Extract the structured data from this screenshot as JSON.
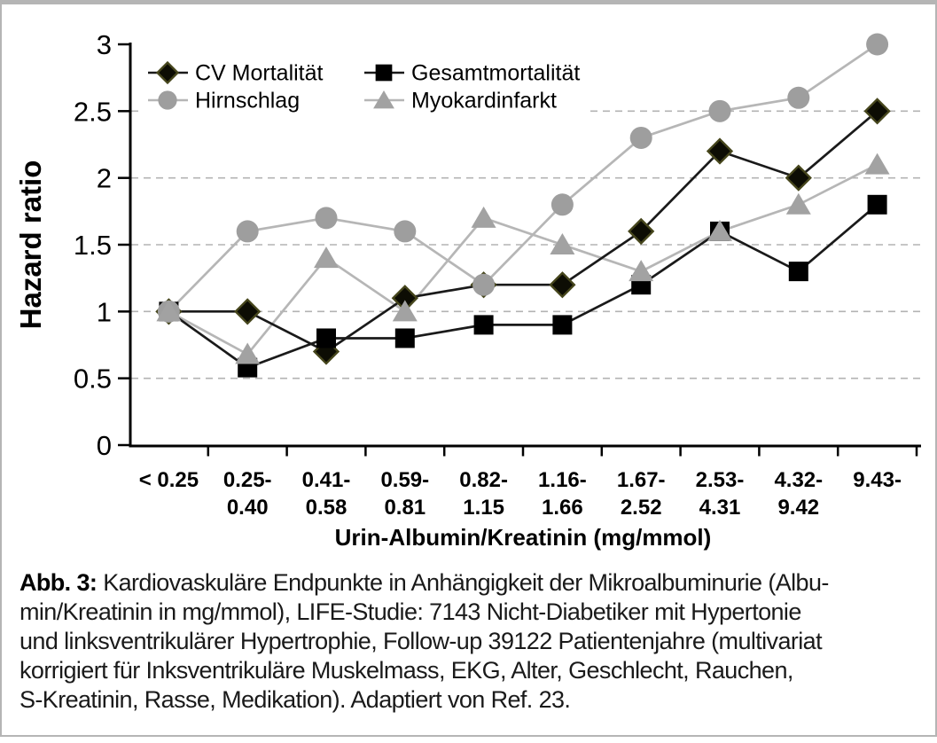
{
  "figure": {
    "caption": {
      "label": "Abb. 3:",
      "line1_rest": "Kardiovaskuläre Endpunkte in Anhängigkeit der Mikroalbuminurie (Albu-",
      "lines": [
        "min/Kreatinin in mg/mmol), LIFE-Studie: 7143 Nicht-Diabetiker mit Hypertonie",
        "und linksventrikulärer Hypertrophie, Follow-up 39122 Patientenjahre (multivariat",
        "korrigiert für Inksventrikuläre Muskelmass, EKG, Alter, Geschlecht, Rauchen,",
        "S-Kreatinin, Rasse, Medikation). Adaptiert von Ref. 23."
      ]
    }
  },
  "chart_data": {
    "type": "line",
    "title": "",
    "ylabel": "Hazard ratio",
    "xlabel": "Urin-Albumin/Kreatinin (mg/mmol)",
    "ylim": [
      0,
      3
    ],
    "yticks": [
      0,
      0.5,
      1,
      1.5,
      2,
      2.5,
      3
    ],
    "ytick_labels": [
      "0",
      "0.5",
      "1",
      "1.5",
      "2",
      "2.5",
      "3"
    ],
    "grid": {
      "horizontal_dashed_at": [
        0.5,
        1,
        1.5,
        2,
        2.5
      ],
      "color": "#b3b3b3"
    },
    "legend_position": "top-left-inside",
    "categories": [
      [
        "< 0.25"
      ],
      [
        "0.25-",
        "0.40"
      ],
      [
        "0.41-",
        "0.58"
      ],
      [
        "0.59-",
        "0.81"
      ],
      [
        "0.82-",
        "1.15"
      ],
      [
        "1.16-",
        "1.66"
      ],
      [
        "1.67-",
        "2.52"
      ],
      [
        "2.53-",
        "4.31"
      ],
      [
        "4.32-",
        "9.42"
      ],
      [
        "9.43-"
      ]
    ],
    "series": [
      {
        "name": "CV Mortalität",
        "marker": "diamond",
        "marker_color": "#0d0d04",
        "marker_edge": "#46461c",
        "line_color": "#1a1a1a",
        "values": [
          1.0,
          1.0,
          0.7,
          1.1,
          1.2,
          1.2,
          1.6,
          2.2,
          2.0,
          2.5
        ]
      },
      {
        "name": "Gesamtmortalität",
        "marker": "square",
        "marker_color": "#000000",
        "marker_edge": "#000000",
        "line_color": "#1a1a1a",
        "values": [
          1.0,
          0.58,
          0.8,
          0.8,
          0.9,
          0.9,
          1.2,
          1.6,
          1.3,
          1.8
        ]
      },
      {
        "name": "Hirnschlag",
        "marker": "circle",
        "marker_color": "#9e9e9e",
        "marker_edge": "#9e9e9e",
        "line_color": "#b6b6b6",
        "values": [
          1.0,
          1.6,
          1.7,
          1.6,
          1.2,
          1.8,
          2.3,
          2.5,
          2.6,
          3.0
        ]
      },
      {
        "name": "Myokardinfarkt",
        "marker": "triangle",
        "marker_color": "#a2a2a2",
        "marker_edge": "#a2a2a2",
        "line_color": "#b6b6b6",
        "values": [
          1.0,
          0.68,
          1.4,
          1.0,
          1.7,
          1.5,
          1.3,
          1.6,
          1.8,
          2.1
        ]
      }
    ]
  }
}
